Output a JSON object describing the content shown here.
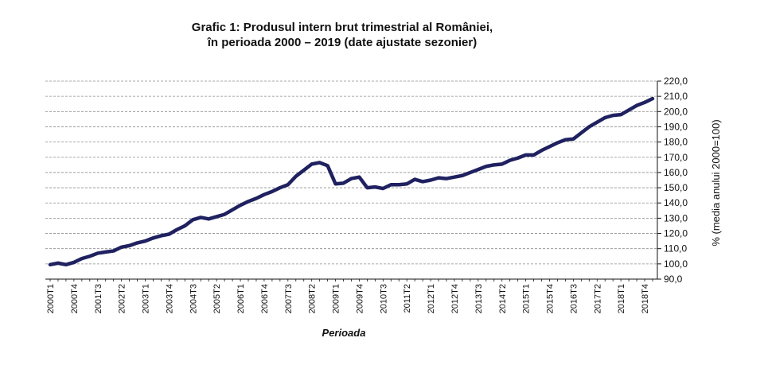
{
  "chart_data": {
    "type": "line",
    "title": "Grafic 1: Produsul intern brut trimestrial al României,",
    "subtitle": "în perioada 2000 – 2019 (date ajustate sezonier)",
    "xlabel": "Perioada",
    "ylabel": "% (media anului 2000=100)",
    "ylim": [
      90,
      220
    ],
    "y_ticks": [
      "90,0",
      "100,0",
      "110,0",
      "120,0",
      "130,0",
      "140,0",
      "150,0",
      "160,0",
      "170,0",
      "180,0",
      "190,0",
      "200,0",
      "210,0",
      "220,0"
    ],
    "y_axis_position": "right",
    "grid": "horizontal dashed",
    "line_color": "#1f2160",
    "x_tick_labels": [
      "2000T1",
      "2000T4",
      "2001T3",
      "2002T2",
      "2003T1",
      "2003T4",
      "2004T3",
      "2005T2",
      "2006T1",
      "2006T4",
      "2007T3",
      "2008T2",
      "2009T1",
      "2009T4",
      "2010T3",
      "2011T2",
      "2012T1",
      "2012T4",
      "2013T3",
      "2014T2",
      "2015T1",
      "2015T4",
      "2016T3",
      "2017T2",
      "2018T1",
      "2018T4"
    ],
    "x": [
      "2000T1",
      "2000T2",
      "2000T3",
      "2000T4",
      "2001T1",
      "2001T2",
      "2001T3",
      "2001T4",
      "2002T1",
      "2002T2",
      "2002T3",
      "2002T4",
      "2003T1",
      "2003T2",
      "2003T3",
      "2003T4",
      "2004T1",
      "2004T2",
      "2004T3",
      "2004T4",
      "2005T1",
      "2005T2",
      "2005T3",
      "2005T4",
      "2006T1",
      "2006T2",
      "2006T3",
      "2006T4",
      "2007T1",
      "2007T2",
      "2007T3",
      "2007T4",
      "2008T1",
      "2008T2",
      "2008T3",
      "2008T4",
      "2009T1",
      "2009T2",
      "2009T3",
      "2009T4",
      "2010T1",
      "2010T2",
      "2010T3",
      "2010T4",
      "2011T1",
      "2011T2",
      "2011T3",
      "2011T4",
      "2012T1",
      "2012T2",
      "2012T3",
      "2012T4",
      "2013T1",
      "2013T2",
      "2013T3",
      "2013T4",
      "2014T1",
      "2014T2",
      "2014T3",
      "2014T4",
      "2015T1",
      "2015T2",
      "2015T3",
      "2015T4",
      "2016T1",
      "2016T2",
      "2016T3",
      "2016T4",
      "2017T1",
      "2017T2",
      "2017T3",
      "2017T4",
      "2018T1",
      "2018T2",
      "2018T3",
      "2018T4",
      "2019T1"
    ],
    "series": [
      {
        "values": [
          99.5,
          100.5,
          99.5,
          101.0,
          103.5,
          105.0,
          107.0,
          107.8,
          108.5,
          111.0,
          112.0,
          113.8,
          115.0,
          117.0,
          118.5,
          119.5,
          122.5,
          125.0,
          129.0,
          130.5,
          129.5,
          131.0,
          132.5,
          135.5,
          138.5,
          141.0,
          143.0,
          145.5,
          147.5,
          150.0,
          152.0,
          157.5,
          161.5,
          165.5,
          166.5,
          164.5,
          152.5,
          153.0,
          156.0,
          157.0,
          150.0,
          150.5,
          149.5,
          152.0,
          152.0,
          152.5,
          155.5,
          154.0,
          155.0,
          156.5,
          156.0,
          157.0,
          158.0,
          160.0,
          162.0,
          164.0,
          165.0,
          165.5,
          168.0,
          169.5,
          171.5,
          171.5,
          174.5,
          177.0,
          179.5,
          181.5,
          182.0,
          186.0,
          190.0,
          193.0,
          196.0,
          197.5,
          198.0,
          201.0,
          204.0,
          206.0,
          208.5
        ]
      }
    ]
  }
}
